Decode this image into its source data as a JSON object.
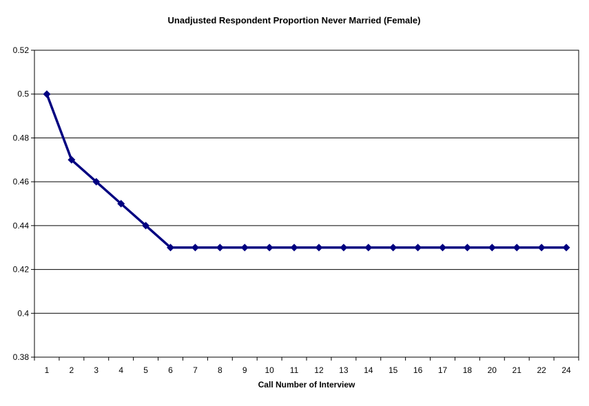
{
  "chart_data": {
    "type": "line",
    "title": "Unadjusted Respondent Proportion Never Married (Female)",
    "xlabel": "Call Number of Interview",
    "ylabel": "",
    "categories": [
      "1",
      "2",
      "3",
      "4",
      "5",
      "6",
      "7",
      "8",
      "9",
      "10",
      "11",
      "12",
      "13",
      "14",
      "15",
      "16",
      "17",
      "18",
      "20",
      "21",
      "22",
      "24"
    ],
    "series": [
      {
        "values": [
          0.5,
          0.47,
          0.46,
          0.45,
          0.44,
          0.43,
          0.43,
          0.43,
          0.43,
          0.43,
          0.43,
          0.43,
          0.43,
          0.43,
          0.43,
          0.43,
          0.43,
          0.43,
          0.43,
          0.43,
          0.43,
          0.43
        ],
        "color": "#000080",
        "marker": "diamond"
      }
    ],
    "ylim": [
      0.38,
      0.52
    ],
    "yticks": [
      "0.38",
      "0.4",
      "0.42",
      "0.44",
      "0.46",
      "0.48",
      "0.5",
      "0.52"
    ],
    "grid": "horizontal",
    "legend": "none"
  }
}
